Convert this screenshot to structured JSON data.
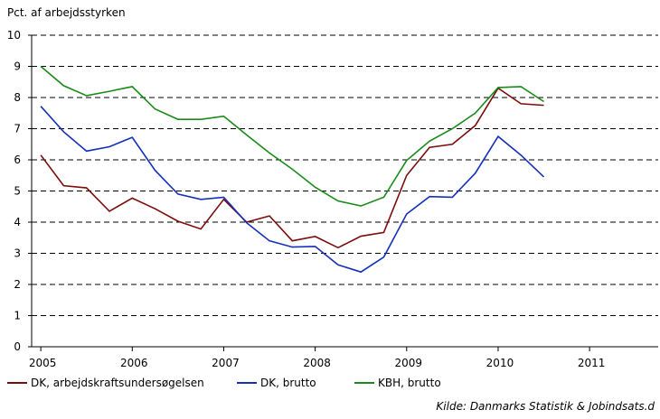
{
  "chart_data": {
    "type": "line",
    "y_label": "Pct. af arbejdsstyrken",
    "source": "Kilde: Danmarks Statistik & Jobindsats.d",
    "x": [
      2005,
      2005.25,
      2005.5,
      2005.75,
      2006,
      2006.25,
      2006.5,
      2006.75,
      2007,
      2007.25,
      2007.5,
      2007.75,
      2008,
      2008.25,
      2008.5,
      2008.75,
      2009,
      2009.25,
      2009.5,
      2009.75,
      2010,
      2010.25,
      2010.5
    ],
    "series": [
      {
        "name": "DK, arbejdskraftsundersøgelsen",
        "color": "#7b0c0c",
        "values": [
          6.15,
          5.17,
          5.1,
          4.35,
          4.77,
          4.43,
          4.03,
          3.78,
          4.73,
          4.0,
          4.2,
          3.4,
          3.54,
          3.18,
          3.55,
          3.67,
          5.5,
          6.4,
          6.5,
          7.1,
          8.3,
          7.8,
          7.75
        ]
      },
      {
        "name": "DK, brutto",
        "color": "#1530b8",
        "values": [
          7.72,
          6.9,
          6.28,
          6.42,
          6.72,
          5.66,
          4.9,
          4.73,
          4.8,
          3.98,
          3.4,
          3.2,
          3.22,
          2.63,
          2.4,
          2.88,
          4.26,
          4.82,
          4.8,
          5.57,
          6.75,
          6.15,
          5.45
        ]
      },
      {
        "name": "KBH, brutto",
        "color": "#1a8a1a",
        "values": [
          9.0,
          8.38,
          8.06,
          8.2,
          8.35,
          7.63,
          7.3,
          7.3,
          7.4,
          6.8,
          6.22,
          5.7,
          5.12,
          4.68,
          4.52,
          4.8,
          5.98,
          6.6,
          7.0,
          7.5,
          8.32,
          8.35,
          7.87
        ]
      }
    ],
    "xlim": [
      2004.9,
      2011.75
    ],
    "xticks": [
      2005,
      2006,
      2007,
      2008,
      2009,
      2010,
      2011
    ],
    "ylim": [
      0,
      10
    ],
    "yticks": [
      0,
      1,
      2,
      3,
      4,
      5,
      6,
      7,
      8,
      9,
      10
    ],
    "grid": true,
    "legend": "bottom"
  }
}
